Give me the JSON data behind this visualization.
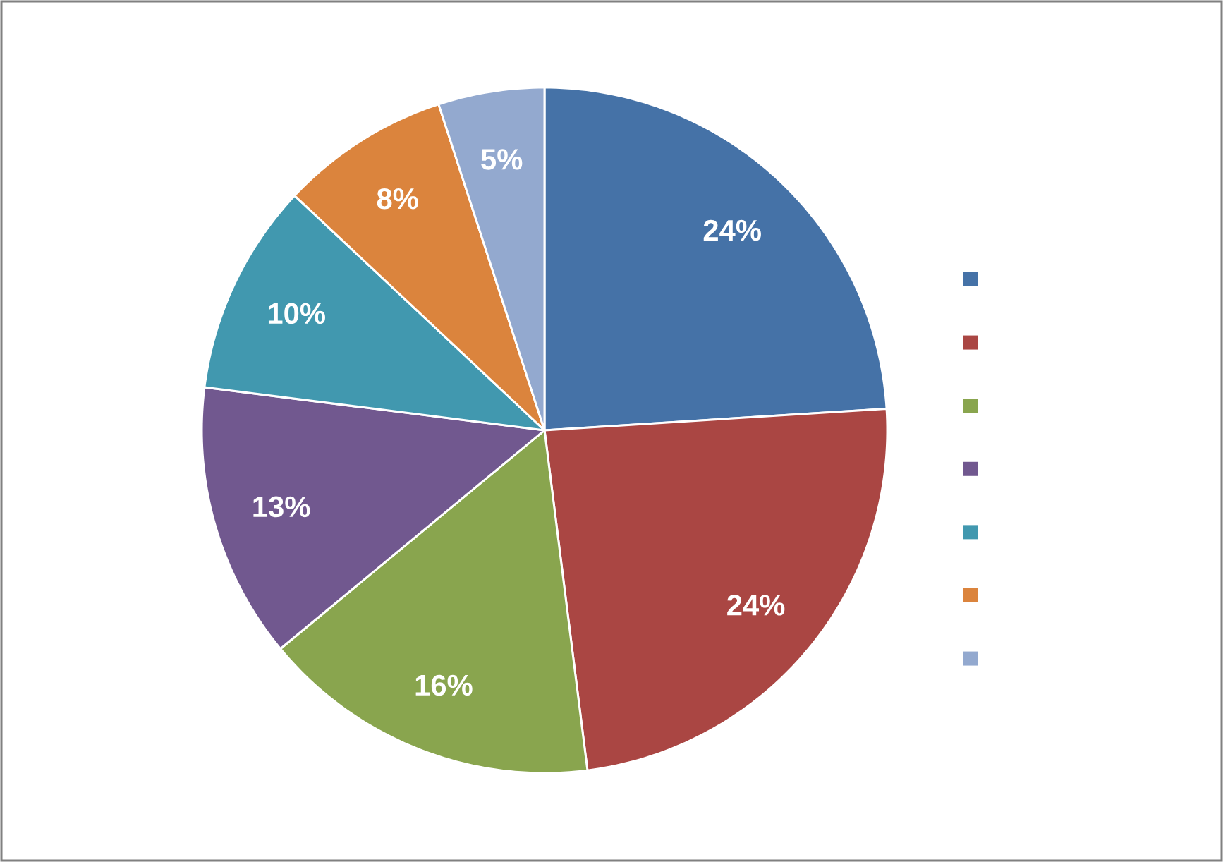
{
  "chart_data": {
    "type": "pie",
    "categories": [
      null,
      null,
      null,
      null,
      null,
      null,
      null
    ],
    "values": [
      24,
      24,
      16,
      13,
      10,
      8,
      5
    ],
    "value_labels": [
      "24%",
      "24%",
      "16%",
      "13%",
      "10%",
      "8%",
      "5%"
    ],
    "colors": [
      "#4572a7",
      "#aa4643",
      "#89a54e",
      "#71588f",
      "#4198af",
      "#db843d",
      "#93a9cf"
    ]
  }
}
